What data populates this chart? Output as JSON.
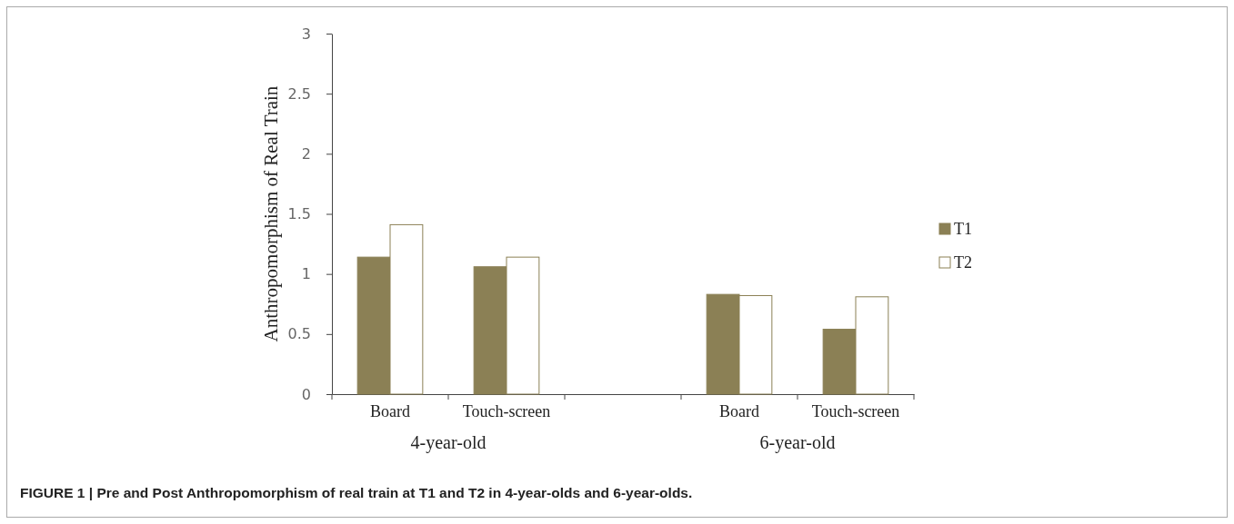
{
  "chart_data": {
    "type": "bar",
    "ylabel": "Anthropomorphism of Real Train",
    "categories": [
      "Board",
      "Touch-screen",
      null,
      "Board",
      "Touch-screen"
    ],
    "series": [
      {
        "name": "T1",
        "color": "#8b8055",
        "values": [
          1.14,
          1.06,
          null,
          0.83,
          0.54
        ]
      },
      {
        "name": "T2",
        "color": "#ffffff",
        "values": [
          1.41,
          1.14,
          null,
          0.82,
          0.81
        ]
      }
    ],
    "ylim": [
      0,
      3
    ],
    "yticks": [
      0,
      0.5,
      1,
      1.5,
      2,
      2.5,
      3
    ],
    "grid": false,
    "legend": "right",
    "annotations": [
      "4-year-old",
      "6-year-old",
      "FIGURE 1 | Pre and Post Anthropomorphism of real train at T1 and T2 in 4-year-olds and 6-year-olds."
    ]
  }
}
